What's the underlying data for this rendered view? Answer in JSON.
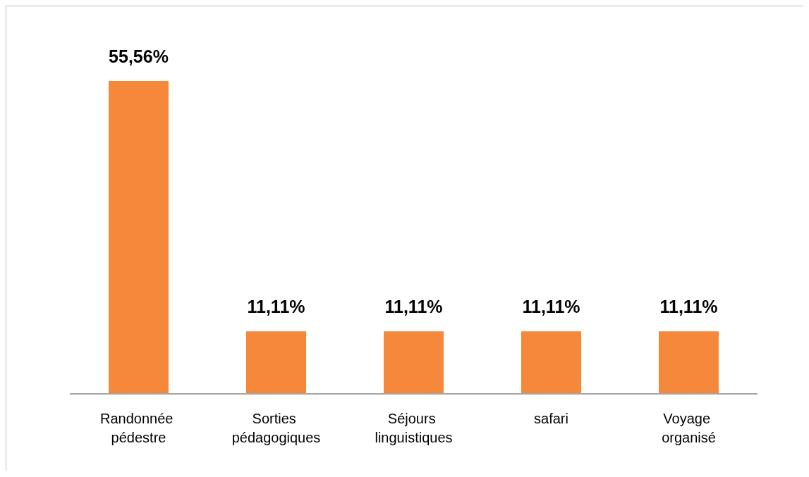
{
  "chart_data": {
    "type": "bar",
    "categories": [
      "Randonnée pédestre",
      "Sorties pédagogiques",
      "Séjours linguistiques",
      "safari",
      "Voyage organisé"
    ],
    "values": [
      55.56,
      11.11,
      11.11,
      11.11,
      11.11
    ],
    "color": "#f5883a",
    "value_labels": [
      "55,56%",
      "11,11%",
      "11,11%",
      "11,11%",
      "11,11%"
    ]
  }
}
